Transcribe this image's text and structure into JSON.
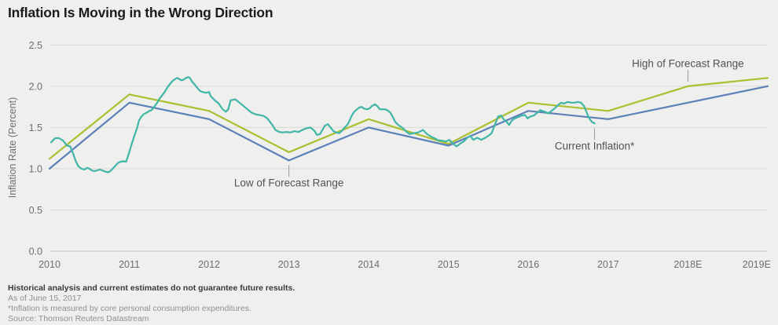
{
  "title": "Inflation Is Moving in the Wrong Direction",
  "footer": {
    "line1": "Historical analysis and current estimates do not guarantee future results.",
    "line2": "As of June 15, 2017",
    "line3": "*Inflation is measured by core personal consumption expenditures.",
    "line4": "Source: Thomson Reuters Datastream"
  },
  "colors": {
    "background": "#efefed",
    "gridline": "#dadad8",
    "zero_line": "#bfbfbd",
    "high_series": "#abbf2f",
    "low_series": "#5c80b8",
    "current_series": "#41b6a8",
    "annotation_text": "#525252",
    "tick_text": "#6e6e6e",
    "leader_line": "#9a9a98"
  },
  "chart_data": {
    "type": "line",
    "title": "Inflation Is Moving in the Wrong Direction",
    "xlabel": "",
    "ylabel": "Inflation Rate (Percent)",
    "ylim": [
      0.0,
      2.5
    ],
    "xlim": [
      2010,
      2019
    ],
    "grid": "horizontal",
    "legend_position": "inline-annotations",
    "y_ticks": [
      0.0,
      0.5,
      1.0,
      1.5,
      2.0,
      2.5
    ],
    "y_tick_labels": [
      "0.0",
      "0.5",
      "1.0",
      "1.5",
      "2.0",
      "2.5"
    ],
    "x_ticks": [
      2010,
      2011,
      2012,
      2013,
      2014,
      2015,
      2016,
      2017,
      2018,
      2019
    ],
    "x_tick_labels": [
      "2010",
      "2011",
      "2012",
      "2013",
      "2014",
      "2015",
      "2016",
      "2017",
      "2018E",
      "2019E"
    ],
    "series": [
      {
        "name": "High of Forecast Range",
        "color": "#abbf2f",
        "x": [
          2010,
          2011,
          2012,
          2013,
          2014,
          2015,
          2016,
          2017,
          2018,
          2019
        ],
        "values": [
          1.12,
          1.9,
          1.7,
          1.2,
          1.6,
          1.3,
          1.8,
          1.7,
          2.0,
          2.1
        ]
      },
      {
        "name": "Low of Forecast Range",
        "color": "#5c80b8",
        "x": [
          2010,
          2011,
          2012,
          2013,
          2014,
          2015,
          2016,
          2017,
          2018,
          2019
        ],
        "values": [
          1.0,
          1.8,
          1.6,
          1.1,
          1.5,
          1.28,
          1.7,
          1.6,
          1.8,
          2.0
        ]
      },
      {
        "name": "Current Inflation*",
        "color": "#41b6a8",
        "points": [
          [
            2010.02,
            1.32
          ],
          [
            2010.07,
            1.37
          ],
          [
            2010.12,
            1.37
          ],
          [
            2010.17,
            1.34
          ],
          [
            2010.22,
            1.28
          ],
          [
            2010.26,
            1.27
          ],
          [
            2010.3,
            1.17
          ],
          [
            2010.33,
            1.09
          ],
          [
            2010.36,
            1.03
          ],
          [
            2010.4,
            1.0
          ],
          [
            2010.44,
            0.99
          ],
          [
            2010.47,
            1.01
          ],
          [
            2010.5,
            1.0
          ],
          [
            2010.53,
            0.98
          ],
          [
            2010.56,
            0.97
          ],
          [
            2010.6,
            0.98
          ],
          [
            2010.63,
            0.99
          ],
          [
            2010.66,
            0.98
          ],
          [
            2010.7,
            0.965
          ],
          [
            2010.73,
            0.955
          ],
          [
            2010.76,
            0.97
          ],
          [
            2010.81,
            1.02
          ],
          [
            2010.86,
            1.07
          ],
          [
            2010.89,
            1.085
          ],
          [
            2010.93,
            1.09
          ],
          [
            2010.96,
            1.085
          ],
          [
            2010.99,
            1.17
          ],
          [
            2011.03,
            1.3
          ],
          [
            2011.07,
            1.42
          ],
          [
            2011.1,
            1.5
          ],
          [
            2011.12,
            1.58
          ],
          [
            2011.15,
            1.63
          ],
          [
            2011.18,
            1.66
          ],
          [
            2011.22,
            1.68
          ],
          [
            2011.25,
            1.7
          ],
          [
            2011.28,
            1.71
          ],
          [
            2011.32,
            1.76
          ],
          [
            2011.35,
            1.8
          ],
          [
            2011.38,
            1.85
          ],
          [
            2011.42,
            1.9
          ],
          [
            2011.45,
            1.94
          ],
          [
            2011.48,
            1.99
          ],
          [
            2011.52,
            2.04
          ],
          [
            2011.55,
            2.07
          ],
          [
            2011.58,
            2.09
          ],
          [
            2011.6,
            2.1
          ],
          [
            2011.63,
            2.085
          ],
          [
            2011.65,
            2.07
          ],
          [
            2011.68,
            2.08
          ],
          [
            2011.71,
            2.1
          ],
          [
            2011.74,
            2.11
          ],
          [
            2011.76,
            2.1
          ],
          [
            2011.79,
            2.05
          ],
          [
            2011.82,
            2.02
          ],
          [
            2011.86,
            1.97
          ],
          [
            2011.89,
            1.94
          ],
          [
            2011.92,
            1.93
          ],
          [
            2011.96,
            1.92
          ],
          [
            2012.0,
            1.93
          ],
          [
            2012.02,
            1.88
          ],
          [
            2012.07,
            1.83
          ],
          [
            2012.12,
            1.79
          ],
          [
            2012.17,
            1.72
          ],
          [
            2012.21,
            1.69
          ],
          [
            2012.24,
            1.72
          ],
          [
            2012.27,
            1.83
          ],
          [
            2012.33,
            1.84
          ],
          [
            2012.38,
            1.8
          ],
          [
            2012.43,
            1.76
          ],
          [
            2012.48,
            1.72
          ],
          [
            2012.53,
            1.68
          ],
          [
            2012.58,
            1.66
          ],
          [
            2012.63,
            1.65
          ],
          [
            2012.68,
            1.64
          ],
          [
            2012.73,
            1.61
          ],
          [
            2012.8,
            1.52
          ],
          [
            2012.83,
            1.47
          ],
          [
            2012.88,
            1.445
          ],
          [
            2012.92,
            1.44
          ],
          [
            2012.97,
            1.445
          ],
          [
            2013.02,
            1.44
          ],
          [
            2013.07,
            1.455
          ],
          [
            2013.12,
            1.445
          ],
          [
            2013.17,
            1.47
          ],
          [
            2013.22,
            1.49
          ],
          [
            2013.27,
            1.5
          ],
          [
            2013.32,
            1.46
          ],
          [
            2013.35,
            1.41
          ],
          [
            2013.39,
            1.42
          ],
          [
            2013.42,
            1.47
          ],
          [
            2013.45,
            1.52
          ],
          [
            2013.49,
            1.54
          ],
          [
            2013.52,
            1.5
          ],
          [
            2013.56,
            1.455
          ],
          [
            2013.59,
            1.44
          ],
          [
            2013.63,
            1.43
          ],
          [
            2013.66,
            1.455
          ],
          [
            2013.69,
            1.49
          ],
          [
            2013.73,
            1.53
          ],
          [
            2013.75,
            1.56
          ],
          [
            2013.78,
            1.63
          ],
          [
            2013.81,
            1.68
          ],
          [
            2013.84,
            1.71
          ],
          [
            2013.88,
            1.74
          ],
          [
            2013.91,
            1.75
          ],
          [
            2013.94,
            1.73
          ],
          [
            2013.98,
            1.72
          ],
          [
            2014.01,
            1.73
          ],
          [
            2014.04,
            1.76
          ],
          [
            2014.08,
            1.78
          ],
          [
            2014.11,
            1.755
          ],
          [
            2014.14,
            1.72
          ],
          [
            2014.2,
            1.72
          ],
          [
            2014.23,
            1.71
          ],
          [
            2014.27,
            1.68
          ],
          [
            2014.3,
            1.63
          ],
          [
            2014.33,
            1.57
          ],
          [
            2014.37,
            1.53
          ],
          [
            2014.4,
            1.51
          ],
          [
            2014.43,
            1.49
          ],
          [
            2014.47,
            1.45
          ],
          [
            2014.51,
            1.42
          ],
          [
            2014.56,
            1.43
          ],
          [
            2014.62,
            1.44
          ],
          [
            2014.68,
            1.47
          ],
          [
            2014.73,
            1.42
          ],
          [
            2014.78,
            1.39
          ],
          [
            2014.82,
            1.37
          ],
          [
            2014.87,
            1.345
          ],
          [
            2014.92,
            1.34
          ],
          [
            2014.97,
            1.33
          ],
          [
            2015.01,
            1.35
          ],
          [
            2015.06,
            1.3
          ],
          [
            2015.1,
            1.27
          ],
          [
            2015.14,
            1.3
          ],
          [
            2015.19,
            1.33
          ],
          [
            2015.23,
            1.37
          ],
          [
            2015.27,
            1.4
          ],
          [
            2015.31,
            1.35
          ],
          [
            2015.36,
            1.375
          ],
          [
            2015.41,
            1.35
          ],
          [
            2015.46,
            1.375
          ],
          [
            2015.5,
            1.4
          ],
          [
            2015.54,
            1.43
          ],
          [
            2015.58,
            1.53
          ],
          [
            2015.62,
            1.63
          ],
          [
            2015.66,
            1.645
          ],
          [
            2015.69,
            1.6
          ],
          [
            2015.73,
            1.565
          ],
          [
            2015.76,
            1.53
          ],
          [
            2015.79,
            1.58
          ],
          [
            2015.83,
            1.61
          ],
          [
            2015.88,
            1.63
          ],
          [
            2015.92,
            1.645
          ],
          [
            2015.96,
            1.65
          ],
          [
            2015.99,
            1.61
          ],
          [
            2016.02,
            1.63
          ],
          [
            2016.07,
            1.645
          ],
          [
            2016.12,
            1.685
          ],
          [
            2016.15,
            1.71
          ],
          [
            2016.21,
            1.69
          ],
          [
            2016.25,
            1.67
          ],
          [
            2016.29,
            1.7
          ],
          [
            2016.33,
            1.73
          ],
          [
            2016.37,
            1.77
          ],
          [
            2016.41,
            1.8
          ],
          [
            2016.45,
            1.79
          ],
          [
            2016.49,
            1.81
          ],
          [
            2016.54,
            1.8
          ],
          [
            2016.58,
            1.8
          ],
          [
            2016.62,
            1.81
          ],
          [
            2016.66,
            1.8
          ],
          [
            2016.7,
            1.755
          ],
          [
            2016.74,
            1.66
          ],
          [
            2016.77,
            1.6
          ],
          [
            2016.8,
            1.565
          ],
          [
            2016.83,
            1.55
          ]
        ]
      }
    ],
    "annotations": [
      {
        "text": "High of Forecast Range",
        "year": 2018.0,
        "value": 2.0,
        "side": "above"
      },
      {
        "text": "Low of Forecast Range",
        "year": 2013.0,
        "value": 1.1,
        "side": "below"
      },
      {
        "text": "Current Inflation*",
        "year": 2016.83,
        "value": 1.55,
        "side": "below"
      }
    ]
  }
}
